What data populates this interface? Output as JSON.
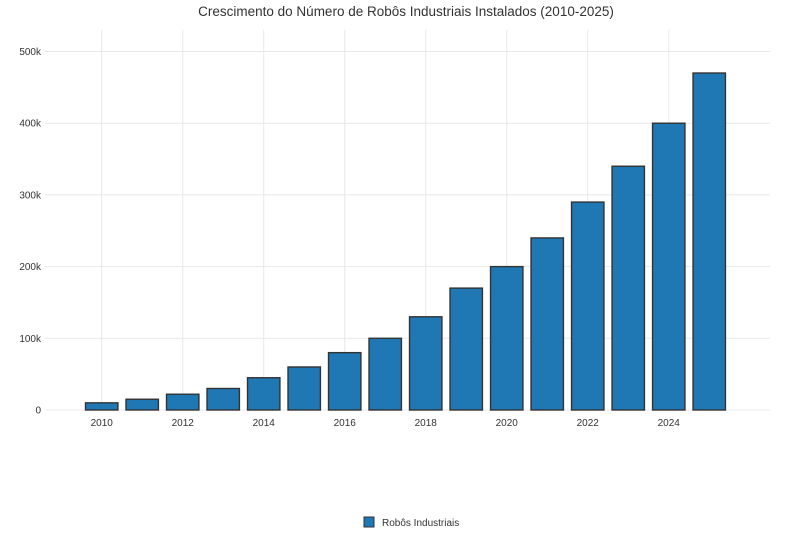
{
  "chart_data": {
    "type": "bar",
    "title": "Crescimento do Número de Robôs Industriais Instalados (2010-2025)",
    "xlabel": "",
    "ylabel": "",
    "categories": [
      "2010",
      "2011",
      "2012",
      "2013",
      "2014",
      "2015",
      "2016",
      "2017",
      "2018",
      "2019",
      "2020",
      "2021",
      "2022",
      "2023",
      "2024",
      "2025"
    ],
    "series": [
      {
        "name": "Robôs Industriais",
        "values": [
          10000,
          15000,
          22000,
          30000,
          45000,
          60000,
          80000,
          100000,
          130000,
          170000,
          200000,
          240000,
          290000,
          340000,
          400000,
          470000
        ],
        "color": "#1f77b4"
      }
    ],
    "ylim": [
      0,
      530000
    ],
    "xlim": [
      2008.6,
      2026.5
    ],
    "x_tick_values": [
      2010,
      2012,
      2014,
      2016,
      2018,
      2020,
      2022,
      2024
    ],
    "x_tick_labels": [
      "2010",
      "2012",
      "2014",
      "2016",
      "2018",
      "2020",
      "2022",
      "2024"
    ],
    "y_tick_values": [
      0,
      100000,
      200000,
      300000,
      400000,
      500000
    ],
    "y_tick_labels": [
      "0",
      "100k",
      "200k",
      "300k",
      "400k",
      "500k"
    ],
    "grid": true,
    "legend_position": "bottom-center",
    "colors": {
      "bar_fill": "#1f77b4",
      "bar_stroke": "#333333",
      "grid": "#e8e8e8",
      "text": "#333333"
    }
  }
}
